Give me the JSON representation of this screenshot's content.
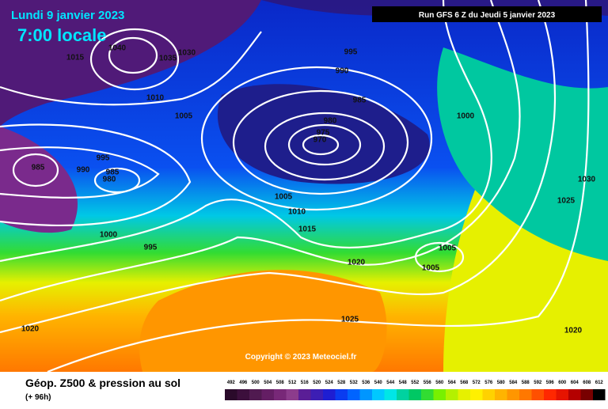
{
  "header": {
    "date": "Lundi 9 janvier 2023",
    "time": "7:00 locale",
    "run": "Run GFS 6 Z du Jeudi 5 janvier 2023"
  },
  "copyright": "Copyright © 2023 Meteociel.fr",
  "footer": {
    "title": "Géop. Z500 & pression au sol",
    "lead": "(+ 96h)"
  },
  "isobars": [
    1015,
    1040,
    1035,
    1030,
    1010,
    1005,
    995,
    990,
    985,
    980,
    975,
    970,
    1000,
    1030,
    1025,
    985,
    990,
    995,
    985,
    980,
    1000,
    995,
    1005,
    1010,
    1015,
    1020,
    1005,
    1005,
    1025,
    1020,
    1020
  ],
  "scale": {
    "values": [
      492,
      496,
      500,
      504,
      508,
      512,
      516,
      520,
      524,
      528,
      532,
      536,
      540,
      544,
      548,
      552,
      556,
      560,
      564,
      568,
      572,
      576,
      580,
      584,
      588,
      592,
      596,
      600,
      604,
      608,
      612
    ],
    "colors": [
      "#2a0a2a",
      "#3c0f3c",
      "#501a50",
      "#641e64",
      "#782878",
      "#8c3c8c",
      "#5a1e96",
      "#3c1eb4",
      "#1e1ed2",
      "#0a3cf0",
      "#0064ff",
      "#0096ff",
      "#00c8ff",
      "#00e6e6",
      "#00d2a0",
      "#00c864",
      "#32dc32",
      "#78f000",
      "#b4f000",
      "#e6f000",
      "#fff000",
      "#ffd200",
      "#ffb400",
      "#ff9600",
      "#ff7800",
      "#ff5000",
      "#ff2800",
      "#e61400",
      "#b40000",
      "#780000",
      "#000000"
    ]
  }
}
